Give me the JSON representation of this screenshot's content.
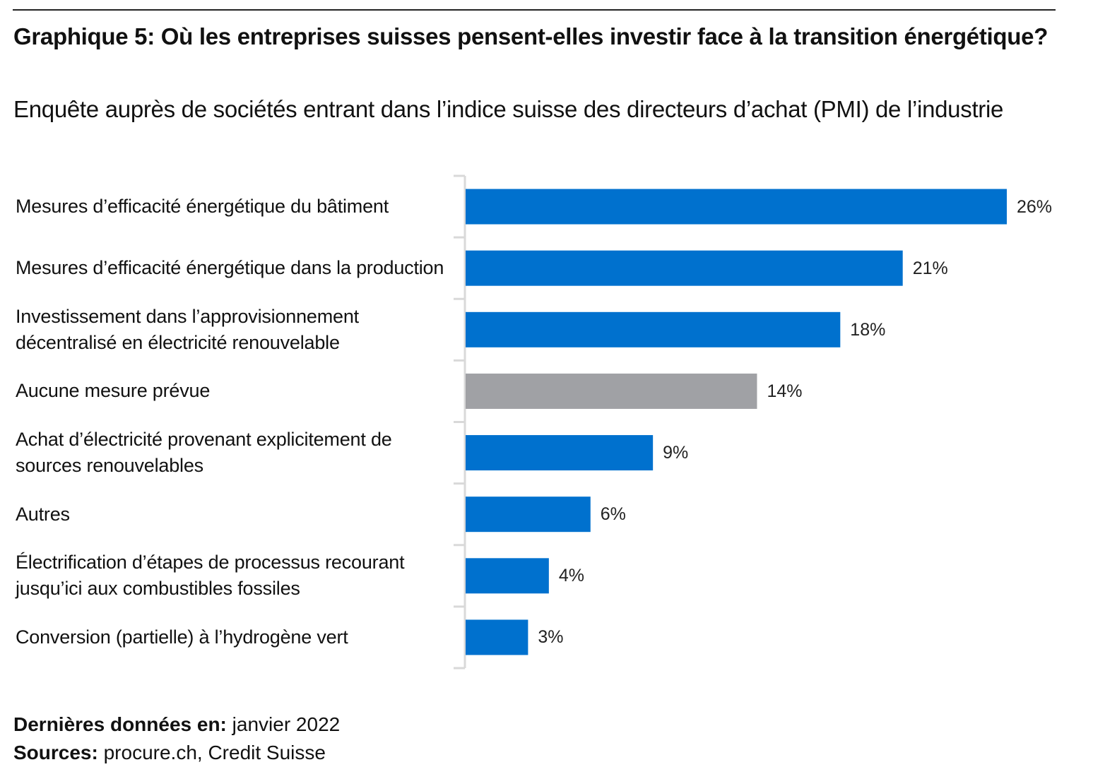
{
  "header": {
    "title": "Graphique 5: Où les entreprises suisses pensent-elles investir face à la transition énergétique?",
    "subtitle": "Enquête auprès de sociétés entrant dans l’indice suisse des directeurs d’achat (PMI) de l’industrie"
  },
  "colors": {
    "primary": "#0071ce",
    "neutral": "#a0a1a5",
    "axis": "#d9d9d9"
  },
  "chart_data": {
    "type": "bar",
    "orientation": "horizontal",
    "title": "Graphique 5: Où les entreprises suisses pensent-elles investir face à la transition énergétique?",
    "subtitle": "Enquête auprès de sociétés entrant dans l’indice suisse des directeurs d’achat (PMI) de l’industrie",
    "xlabel": "",
    "ylabel": "",
    "unit": "%",
    "xlim": [
      0,
      26
    ],
    "grid": false,
    "legend": "none",
    "categories": [
      "Mesures d’efficacité énergétique du bâtiment",
      "Mesures d’efficacité énergétique dans la production",
      "Investissement dans l’approvisionnement décentralisé en électricité renouvelable",
      "Aucune mesure prévue",
      "Achat d’électricité provenant explicitement de sources renouvelables",
      "Autres",
      "Électrification d’étapes de processus recourant jusqu’ici aux combustibles fossiles",
      "Conversion (partielle) à l’hydrogène vert"
    ],
    "values": [
      26,
      21,
      18,
      14,
      9,
      6,
      4,
      3
    ],
    "data_labels": [
      "26%",
      "21%",
      "18%",
      "14%",
      "9%",
      "6%",
      "4%",
      "3%"
    ],
    "highlight": [
      false,
      false,
      false,
      true,
      false,
      false,
      false,
      false
    ]
  },
  "footer": {
    "latest_label": "Dernières données en:",
    "latest_value": "janvier 2022",
    "sources_label": "Sources:",
    "sources_value": "procure.ch, Credit Suisse"
  }
}
